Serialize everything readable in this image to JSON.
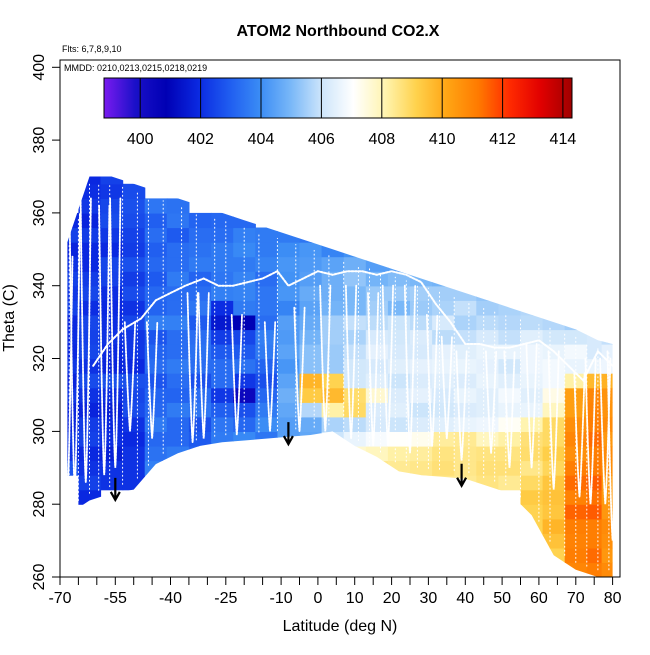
{
  "chart_data": {
    "type": "heatmap",
    "title": "ATOM2 Northbound CO2.X",
    "flights_label": "Flts: 6,7,8,9,10",
    "dates_label": "MMDD: 0210,0213,0215,0218,0219",
    "xlabel": "Latitude (deg N)",
    "ylabel": "Theta (C)",
    "xlim": [
      -70,
      82
    ],
    "ylim": [
      260,
      402
    ],
    "x_ticks": [
      -70,
      -55,
      -40,
      -25,
      -10,
      0,
      10,
      20,
      30,
      40,
      50,
      60,
      70,
      80
    ],
    "x_minor_ticks": [
      -65,
      -60,
      -50,
      -45,
      -35,
      -30,
      -20,
      -15,
      -5,
      5,
      15,
      25,
      35,
      45,
      55,
      65,
      75
    ],
    "y_ticks": [
      260,
      280,
      300,
      320,
      340,
      360,
      380,
      400
    ],
    "colorbar": {
      "range": [
        398.8,
        414.3
      ],
      "ticks": [
        400,
        402,
        404,
        406,
        408,
        410,
        412,
        414
      ],
      "colors": [
        "#7a1bf0",
        "#1a10c8",
        "#0000b4",
        "#0a28e0",
        "#1f5cf0",
        "#3a8cf5",
        "#7ab8f8",
        "#cfe6fb",
        "#ffffff",
        "#fff4b0",
        "#ffd24d",
        "#ffa514",
        "#ff7a00",
        "#ff2a00",
        "#e10000",
        "#a00000"
      ]
    },
    "arrows": [
      -55,
      -8,
      39
    ],
    "field": {
      "lat": [
        -68,
        -62,
        -56,
        -50,
        -44,
        -38,
        -32,
        -26,
        -20,
        -14,
        -8,
        -2,
        4,
        10,
        16,
        22,
        28,
        34,
        40,
        46,
        52,
        58,
        64,
        70,
        76,
        80
      ],
      "theta": [
        262,
        266,
        270,
        274,
        278,
        282,
        286,
        290,
        294,
        298,
        302,
        306,
        310,
        314,
        318,
        322,
        326,
        330,
        334,
        338,
        342,
        346,
        350,
        354,
        358,
        362,
        366,
        370
      ],
      "bottom": [
        277,
        281,
        283,
        284,
        291,
        294,
        296,
        297,
        297.5,
        298,
        298.5,
        299,
        300,
        296,
        293,
        289,
        288,
        287.5,
        287,
        285,
        283,
        277,
        266,
        262,
        260,
        260
      ],
      "top": [
        352,
        370,
        370,
        368,
        366,
        364,
        362,
        360,
        358,
        356,
        354,
        352,
        350,
        348,
        346,
        344,
        342,
        340,
        338,
        336,
        334,
        332,
        330,
        328,
        325,
        324
      ],
      "values": [
        [
          null,
          null,
          null,
          null,
          null,
          null,
          null,
          null,
          null,
          null,
          null,
          null,
          null,
          null,
          null,
          null,
          null,
          null,
          null,
          null,
          null,
          null,
          409.2,
          410.9,
          411.1,
          410.8
        ],
        [
          null,
          null,
          null,
          null,
          null,
          null,
          null,
          null,
          null,
          null,
          null,
          null,
          null,
          null,
          null,
          null,
          null,
          null,
          null,
          null,
          null,
          null,
          409.1,
          411.1,
          411.4,
          410.5
        ],
        [
          null,
          null,
          null,
          null,
          null,
          null,
          null,
          null,
          null,
          null,
          null,
          null,
          null,
          null,
          null,
          null,
          null,
          null,
          null,
          null,
          null,
          409.1,
          409.5,
          411,
          411.1,
          410.7
        ],
        [
          null,
          null,
          null,
          null,
          null,
          null,
          null,
          null,
          null,
          null,
          null,
          null,
          null,
          null,
          null,
          null,
          null,
          null,
          null,
          null,
          null,
          409.1,
          409.8,
          411.1,
          411.1,
          410.8
        ],
        [
          null,
          null,
          null,
          null,
          null,
          null,
          null,
          null,
          null,
          null,
          null,
          null,
          null,
          null,
          null,
          null,
          null,
          null,
          null,
          null,
          null,
          409.1,
          409.4,
          411.5,
          411.6,
          410.5
        ],
        [
          null,
          401.9,
          null,
          null,
          null,
          null,
          null,
          null,
          null,
          null,
          null,
          null,
          null,
          null,
          null,
          null,
          null,
          null,
          null,
          null,
          null,
          409.3,
          409.5,
          411,
          411.3,
          410.4
        ],
        [
          null,
          402.4,
          402.1,
          402.1,
          null,
          null,
          null,
          null,
          null,
          null,
          null,
          null,
          null,
          null,
          null,
          null,
          408.5,
          408.5,
          408.4,
          408.6,
          408.4,
          408.9,
          409.4,
          411.4,
          411.6,
          410.4
        ],
        [
          402.8,
          402.1,
          402.1,
          402.1,
          403.7,
          null,
          null,
          null,
          null,
          null,
          null,
          null,
          null,
          null,
          408.5,
          408.4,
          408.5,
          408.7,
          408.5,
          408.7,
          408.7,
          408.5,
          409,
          411.1,
          411.2,
          410.7
        ],
        [
          402.1,
          401.9,
          401.7,
          402.1,
          403.4,
          403.6,
          403.1,
          403.8,
          403.8,
          404.1,
          null,
          null,
          null,
          407.7,
          407.9,
          408.2,
          408.3,
          408.6,
          408.5,
          408.6,
          408.6,
          408.8,
          409.2,
          410.7,
          411.1,
          410.8
        ],
        [
          402.2,
          402.4,
          402,
          401.9,
          403.2,
          403.2,
          402.9,
          403.6,
          403.9,
          403.5,
          404.4,
          404.6,
          406,
          406.6,
          406.9,
          407.1,
          407.3,
          408.3,
          408.4,
          407.9,
          408.2,
          408.7,
          408.9,
          410.9,
          411.4,
          410.5
        ],
        [
          401.8,
          402.3,
          401.9,
          402.1,
          403.6,
          403.2,
          402.7,
          403.5,
          403.2,
          404,
          404.4,
          404.7,
          405.6,
          405.8,
          406.2,
          406,
          406.3,
          406.4,
          406.6,
          406.7,
          407.2,
          408.1,
          408.9,
          410.7,
          411.1,
          410.8
        ],
        [
          401.8,
          401.8,
          401.7,
          402.6,
          403.2,
          403.6,
          403.5,
          403,
          402.7,
          403.6,
          404.6,
          405.7,
          408.2,
          408.9,
          406.3,
          406.4,
          406,
          406.1,
          406.3,
          406.4,
          406.6,
          406.6,
          407.9,
          410.3,
          411,
          410.6
        ],
        [
          402.2,
          402.1,
          402,
          402.5,
          403.1,
          403.1,
          403.3,
          402.2,
          400.4,
          403.2,
          404.8,
          409.3,
          409.7,
          408.8,
          407.7,
          406.3,
          406.5,
          406.2,
          406.6,
          406.4,
          406.8,
          406.4,
          407.4,
          410.3,
          410.9,
          410.6
        ],
        [
          401.8,
          402.6,
          402.7,
          402.7,
          402.8,
          403.3,
          402.7,
          403.3,
          402.2,
          402.7,
          404.5,
          409.8,
          409.1,
          406.1,
          406.4,
          406,
          406.3,
          406.4,
          406.3,
          406.6,
          406.4,
          406.6,
          406.8,
          408.2,
          409.7,
          409.9
        ],
        [
          402.2,
          402.1,
          401.8,
          401.9,
          403.3,
          403.6,
          403.3,
          403.3,
          403.4,
          403.1,
          404.2,
          405.2,
          405.4,
          406.1,
          406.2,
          406.4,
          406.5,
          406.6,
          406.6,
          406.5,
          406.1,
          406.7,
          406.8,
          406.6,
          406.6,
          406.7
        ],
        [
          401.9,
          402.5,
          401.9,
          402.2,
          403.1,
          403.3,
          403.4,
          402.9,
          402.9,
          403.6,
          404.5,
          405.2,
          405.4,
          405.9,
          406.5,
          406.2,
          406.2,
          406.5,
          406.4,
          406.6,
          406.6,
          406.7,
          406.6,
          406.8,
          406.2,
          406.5
        ],
        [
          402,
          402.4,
          402.1,
          402.2,
          402.8,
          403.3,
          403.3,
          402.3,
          402.5,
          403.7,
          404.3,
          404.9,
          405.5,
          405.6,
          406.2,
          406.1,
          406.3,
          405.8,
          405.9,
          406.2,
          405.9,
          406.4,
          406.1,
          406.1,
          406.2,
          405.9
        ],
        [
          401.9,
          402.5,
          402,
          402.5,
          403.7,
          403.7,
          402.9,
          401.5,
          400.9,
          403.3,
          404.4,
          404.7,
          405.5,
          405.9,
          405.8,
          406,
          405.8,
          406.2,
          405.6,
          405.8,
          405.7,
          405.8,
          405.7,
          405.5,
          405.4,
          405.4
        ],
        [
          402.4,
          402,
          401.9,
          402.1,
          403.1,
          403.3,
          403.5,
          402,
          403.6,
          403.5,
          403.8,
          404.5,
          404.9,
          405,
          405.5,
          405,
          405.4,
          405.6,
          405.9,
          405.5,
          405.6,
          405.7,
          405.7,
          404.8,
          405.4,
          null
        ],
        [
          402.2,
          402.5,
          402,
          402.6,
          403.2,
          403.3,
          403.3,
          403.7,
          403.8,
          403.5,
          404.2,
          404.7,
          404.8,
          405,
          405.4,
          405.4,
          405.5,
          405.5,
          405.5,
          405.3,
          405.5,
          405.3,
          404.8,
          null,
          null,
          null
        ],
        [
          402.4,
          402.3,
          402.4,
          402.3,
          402.9,
          403.6,
          403.1,
          403.5,
          403.8,
          403.3,
          404.1,
          404.4,
          404.8,
          405.3,
          404.9,
          405.1,
          405,
          404.9,
          405.3,
          405.3,
          405.3,
          null,
          null,
          null,
          null,
          null
        ],
        [
          402.1,
          401.9,
          402.5,
          402.7,
          403.2,
          403.3,
          403.6,
          403.6,
          403.6,
          403.8,
          404.2,
          404.3,
          404.5,
          404.8,
          404.4,
          404.4,
          404.8,
          404.7,
          null,
          null,
          null,
          null,
          null,
          null,
          null,
          null
        ],
        [
          401.8,
          401.9,
          401.9,
          402.3,
          403,
          403.3,
          403.4,
          403.6,
          403.9,
          403.6,
          404,
          404.2,
          403.8,
          404.1,
          404.3,
          null,
          null,
          null,
          null,
          null,
          null,
          null,
          null,
          null,
          null,
          null
        ],
        [
          402.4,
          402.3,
          402.2,
          402.4,
          403.3,
          402.9,
          403.3,
          403.3,
          403.7,
          403.6,
          403.6,
          403.5,
          null,
          null,
          null,
          null,
          null,
          null,
          null,
          null,
          null,
          null,
          null,
          null,
          null,
          null
        ],
        [
          401.9,
          401.8,
          402.6,
          402.6,
          403,
          403.5,
          403.1,
          403.2,
          403.2,
          null,
          null,
          null,
          null,
          null,
          null,
          null,
          null,
          null,
          null,
          null,
          null,
          null,
          null,
          null,
          null,
          null
        ],
        [
          null,
          402.2,
          402.5,
          402.7,
          403.5,
          403.4,
          null,
          null,
          null,
          null,
          null,
          null,
          null,
          null,
          null,
          null,
          null,
          null,
          null,
          null,
          null,
          null,
          null,
          null,
          null,
          null
        ],
        [
          null,
          402,
          402.2,
          402.6,
          null,
          null,
          null,
          null,
          null,
          null,
          null,
          null,
          null,
          null,
          null,
          null,
          null,
          null,
          null,
          null,
          null,
          null,
          null,
          null,
          null,
          null
        ],
        [
          null,
          401.9,
          402.4,
          null,
          null,
          null,
          null,
          null,
          null,
          null,
          null,
          null,
          null,
          null,
          null,
          null,
          null,
          null,
          null,
          null,
          null,
          null,
          null,
          null,
          null,
          null
        ]
      ]
    },
    "profiles": {
      "upper_lat": [
        -61,
        -57,
        -53,
        -48,
        -44,
        -40,
        -36,
        -31,
        -27,
        -23,
        -19,
        -15,
        -11,
        -8,
        -4,
        0,
        4,
        8,
        12,
        16,
        20,
        24,
        28,
        32,
        36,
        40,
        44,
        48,
        52,
        56,
        60,
        64,
        68,
        72,
        76,
        80
      ],
      "upper_theta": [
        318,
        324,
        328,
        331,
        336,
        338,
        340,
        342,
        340,
        340,
        341,
        342,
        344,
        340,
        342,
        344,
        343,
        344,
        344,
        343,
        344,
        343,
        341,
        335,
        330,
        324,
        324,
        323,
        323,
        324,
        325,
        322,
        318,
        314,
        322,
        318
      ],
      "dips": [
        {
          "lat": -68,
          "bottom": 282,
          "top": 348
        },
        {
          "lat": -66,
          "bottom": 284,
          "top": 360
        },
        {
          "lat": -63,
          "bottom": 286,
          "top": 364
        },
        {
          "lat": -58,
          "bottom": 288,
          "top": 362
        },
        {
          "lat": -55,
          "bottom": 290,
          "top": 364
        },
        {
          "lat": -51,
          "bottom": 300,
          "top": 330
        },
        {
          "lat": -45,
          "bottom": 298,
          "top": 330
        },
        {
          "lat": -34,
          "bottom": 297,
          "top": 338
        },
        {
          "lat": -31,
          "bottom": 298,
          "top": 338
        },
        {
          "lat": -22,
          "bottom": 299,
          "top": 332
        },
        {
          "lat": -13,
          "bottom": 300,
          "top": 330
        },
        {
          "lat": -5,
          "bottom": 300,
          "top": 334
        },
        {
          "lat": 2,
          "bottom": 300,
          "top": 340
        },
        {
          "lat": 9,
          "bottom": 298,
          "top": 340
        },
        {
          "lat": 15,
          "bottom": 296,
          "top": 338
        },
        {
          "lat": 19,
          "bottom": 296,
          "top": 340
        },
        {
          "lat": 25,
          "bottom": 294,
          "top": 340
        },
        {
          "lat": 31,
          "bottom": 296,
          "top": 332
        },
        {
          "lat": 35,
          "bottom": 298,
          "top": 326
        },
        {
          "lat": 39,
          "bottom": 292,
          "top": 322
        },
        {
          "lat": 47,
          "bottom": 294,
          "top": 322
        },
        {
          "lat": 52,
          "bottom": 290,
          "top": 322
        },
        {
          "lat": 58,
          "bottom": 290,
          "top": 324
        },
        {
          "lat": 64,
          "bottom": 284,
          "top": 322
        },
        {
          "lat": 71,
          "bottom": 282,
          "top": 316
        },
        {
          "lat": 74,
          "bottom": 280,
          "top": 320
        },
        {
          "lat": 78,
          "bottom": 280,
          "top": 320
        },
        {
          "lat": 80,
          "bottom": 270,
          "top": 322
        }
      ],
      "verticals": [
        -69,
        -67.5,
        -65,
        -62,
        -59.5,
        -56.5,
        -53,
        -49,
        -46,
        -42,
        -37,
        -33,
        -28,
        -25,
        -20,
        -16,
        -11,
        -6,
        -1,
        3,
        7,
        11,
        14,
        17,
        21,
        24,
        27,
        30,
        33,
        37,
        41,
        45,
        48,
        51,
        55,
        60,
        63,
        67,
        70,
        73,
        76,
        79
      ]
    }
  }
}
